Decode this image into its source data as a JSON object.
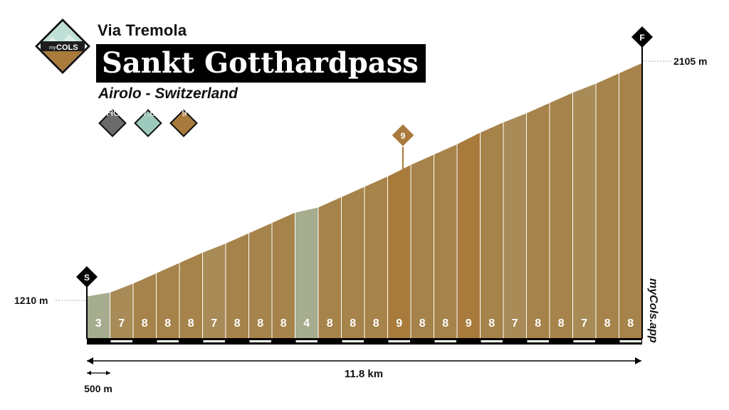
{
  "header": {
    "subtitle": "Via Tremola",
    "title": "Sankt Gotthardpass",
    "location": "Airolo - Switzerland"
  },
  "logo": {
    "top_text": "my",
    "bottom_text": "COLS"
  },
  "badges": [
    {
      "name": "category-badge",
      "label": "HC",
      "color": "#6b6b6b"
    },
    {
      "name": "difficulty-badge",
      "label": "7.6",
      "color": "#9ec9bd"
    },
    {
      "name": "max-gradient-badge",
      "label": "9",
      "color": "#a87a3c"
    }
  ],
  "markers": {
    "start": "S",
    "finish": "F",
    "peak_label": "9",
    "start_elevation": "1210 m",
    "finish_elevation": "2105 m"
  },
  "scale": {
    "total_distance": "11.8 km",
    "segment_scale": "500 m"
  },
  "watermark": "myCols.app",
  "colors": {
    "gradient_low": "#a6ad8e",
    "gradient_7": "#a88b57",
    "gradient_8": "#a6834a",
    "gradient_9": "#a87a3c",
    "divider": "#ffffff",
    "axis": "#000000"
  },
  "chart_data": {
    "type": "area",
    "title": "Sankt Gotthardpass",
    "xlabel": "",
    "ylabel": "",
    "segment_length_km": 0.5,
    "total_distance_km": 11.8,
    "start_elevation_m": 1210,
    "finish_elevation_m": 2105,
    "segment_gradients": [
      3,
      7,
      8,
      8,
      8,
      7,
      8,
      8,
      8,
      4,
      8,
      8,
      8,
      9,
      8,
      8,
      9,
      8,
      7,
      8,
      8,
      7,
      8,
      8
    ],
    "peak_gradient_segment_index": 13
  }
}
